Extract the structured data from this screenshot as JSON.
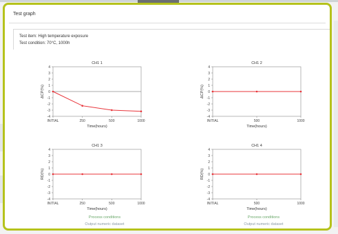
{
  "window": {
    "title": "Test graph"
  },
  "info": {
    "test_item": "Test item: High temperature exposure",
    "test_condition": "Test condition: 70°C, 1000h"
  },
  "charts": [
    {
      "title": "CH1 1",
      "ylabel": "ΔCP(%)",
      "xlabel": "Time(hours)",
      "categories": [
        "INITIAL",
        "250",
        "500",
        "1000"
      ],
      "y_ticks": [
        "4",
        "3",
        "2",
        "1",
        "0",
        "-1",
        "-2",
        "-3",
        "-4"
      ],
      "y_range": [
        -4,
        4
      ],
      "values": [
        0,
        -2.3,
        -3,
        -3.2
      ],
      "line_color": "#e8343a",
      "baseline_color": "#8c8c8c"
    },
    {
      "title": "CH1 2",
      "ylabel": "ΔCP(%)",
      "xlabel": "Time(hours)",
      "categories": [
        "INITIAL",
        "500",
        "1000"
      ],
      "y_ticks": [
        "4",
        "3",
        "2",
        "1",
        "0",
        "-1",
        "-2",
        "-3",
        "-4"
      ],
      "y_range": [
        -4,
        4
      ],
      "values": [
        0,
        0,
        0
      ],
      "line_color": "#e8343a",
      "baseline_color": "#8c8c8c"
    },
    {
      "title": "CH1 3",
      "ylabel": "RD(%)",
      "xlabel": "Time(hours)",
      "categories": [
        "INITIAL",
        "250",
        "500",
        "1000"
      ],
      "y_ticks": [
        "4",
        "3",
        "2",
        "1",
        "0",
        "-1",
        "-2",
        "-3",
        "-4"
      ],
      "y_range": [
        -4,
        4
      ],
      "values": [
        0,
        0,
        0,
        0
      ],
      "line_color": "#e8343a",
      "baseline_color": "#8c8c8c"
    },
    {
      "title": "CH1 4",
      "ylabel": "RD(%)",
      "xlabel": "Time(hours)",
      "categories": [
        "INITIAL",
        "500",
        "1000"
      ],
      "y_ticks": [
        "4",
        "3",
        "2",
        "1",
        "0",
        "-1",
        "-2",
        "-3",
        "-4"
      ],
      "y_range": [
        -4,
        4
      ],
      "values": [
        0,
        0,
        0
      ],
      "line_color": "#e8343a",
      "baseline_color": "#8c8c8c"
    }
  ],
  "links": [
    {
      "label": "Process conditions",
      "style": "green"
    },
    {
      "label": "Output numeric dataset",
      "style": "gray"
    },
    {
      "label": "Process conditions",
      "style": "green"
    },
    {
      "label": "Output numeric dataset",
      "style": "gray"
    }
  ],
  "colors": {
    "frame_border": "#b5c21b",
    "link_green": "#6aa86a",
    "link_gray": "#8a9aa6"
  }
}
